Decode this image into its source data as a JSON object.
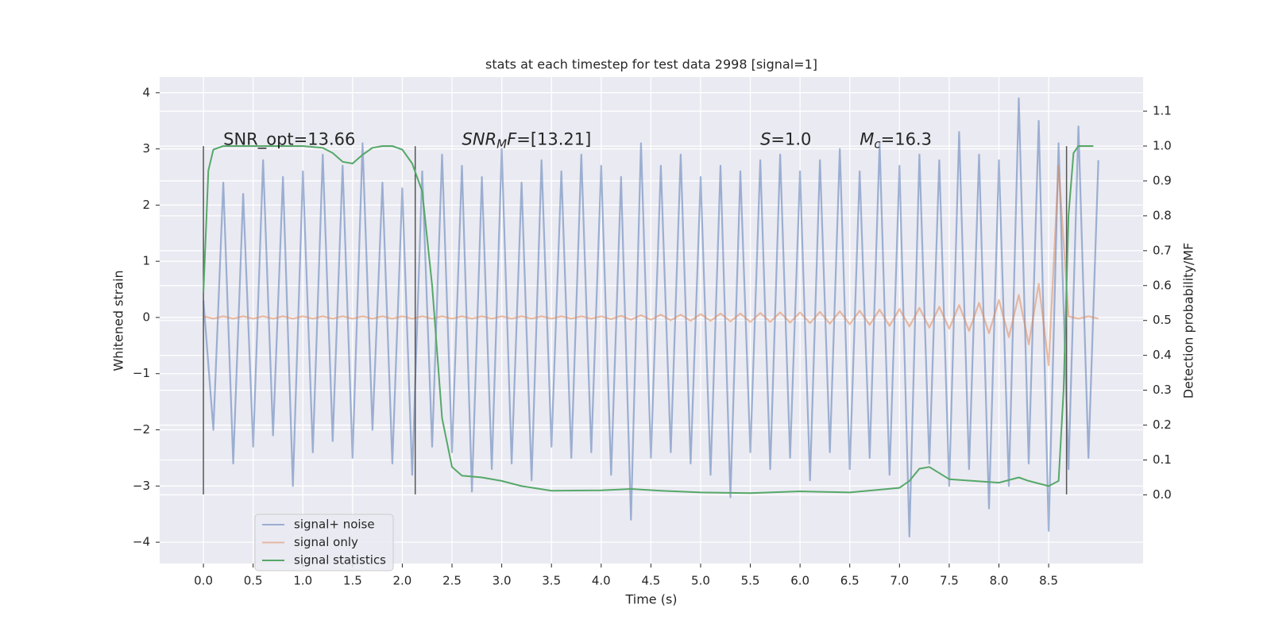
{
  "chart_data": {
    "type": "line",
    "title": "stats at each timestep for test data 2998 [signal=1]",
    "xlabel": "Time (s)",
    "ylabel": "Whitened strain",
    "y2label": "Detection probability/MF",
    "background": "#eaeaf2",
    "grid": true,
    "legend": "lower left",
    "xlim": [
      -0.44,
      9.45
    ],
    "ylim": [
      -4.38,
      4.28
    ],
    "y2lim": [
      -0.197,
      1.198
    ],
    "xticks": [
      {
        "value": 0,
        "label": "0.0"
      },
      0.5,
      {
        "value": 1,
        "label": "1.0"
      },
      1.5,
      {
        "value": 2,
        "label": "2.0"
      },
      2.5,
      {
        "value": 3,
        "label": "3.0"
      },
      3.5,
      {
        "value": 4,
        "label": "4.0"
      },
      4.5,
      {
        "value": 5,
        "label": "5.0"
      },
      5.5,
      {
        "value": 6,
        "label": "6.0"
      },
      6.5,
      {
        "value": 7,
        "label": "7.0"
      },
      7.5,
      {
        "value": 8,
        "label": "8.0"
      },
      8.5
    ],
    "yticks": [
      {
        "value": -4,
        "label": "−4"
      },
      {
        "value": -3,
        "label": "−3"
      },
      {
        "value": -2,
        "label": "−2"
      },
      {
        "value": -1,
        "label": "−1"
      },
      0,
      1,
      2,
      3,
      4
    ],
    "y2ticks": [
      {
        "value": 0,
        "label": "0.0"
      },
      0.1,
      0.2,
      0.3,
      0.4,
      0.5,
      0.6,
      0.7,
      0.8,
      0.9,
      {
        "value": 1,
        "label": "1.0"
      },
      1.1
    ],
    "x": [
      0,
      0.1,
      0.2,
      0.3,
      0.4,
      0.5,
      0.6,
      0.7,
      0.8,
      0.9,
      1,
      1.1,
      1.2,
      1.3,
      1.4,
      1.5,
      1.6,
      1.7,
      1.8,
      1.9,
      2,
      2.1,
      2.2,
      2.3,
      2.4,
      2.5,
      2.6,
      2.7,
      2.8,
      2.9,
      3,
      3.1,
      3.2,
      3.3,
      3.4,
      3.5,
      3.6,
      3.7,
      3.8,
      3.9,
      4,
      4.1,
      4.2,
      4.3,
      4.4,
      4.5,
      4.6,
      4.7,
      4.8,
      4.9,
      5,
      5.1,
      5.2,
      5.3,
      5.4,
      5.5,
      5.6,
      5.7,
      5.8,
      5.9,
      6,
      6.1,
      6.2,
      6.3,
      6.4,
      6.5,
      6.6,
      6.7,
      6.8,
      6.9,
      7,
      7.1,
      7.2,
      7.3,
      7.4,
      7.5,
      7.6,
      7.7,
      7.8,
      7.9,
      8,
      8.1,
      8.2,
      8.3,
      8.4,
      8.5,
      8.6,
      8.7,
      8.8,
      8.9,
      9
    ],
    "series": [
      {
        "name": "signal+ noise",
        "color": "#4c72b0",
        "opacity": 0.5,
        "values": [
          0.3,
          -2.0,
          2.4,
          -2.6,
          2.2,
          -2.3,
          2.8,
          -2.1,
          2.5,
          -3.0,
          2.6,
          -2.4,
          2.9,
          -2.2,
          2.7,
          -2.5,
          3.1,
          -2.0,
          2.4,
          -2.6,
          2.3,
          -2.8,
          2.6,
          -2.3,
          2.9,
          -2.4,
          2.7,
          -3.1,
          2.5,
          -2.7,
          3.0,
          -2.6,
          2.4,
          -2.9,
          2.8,
          -2.3,
          2.6,
          -2.5,
          2.9,
          -2.4,
          2.7,
          -2.8,
          2.5,
          -3.6,
          3.1,
          -2.5,
          2.7,
          -2.4,
          2.9,
          -2.6,
          2.5,
          -2.8,
          2.7,
          -3.2,
          2.6,
          -2.4,
          2.8,
          -2.7,
          2.9,
          -2.5,
          2.6,
          -2.9,
          2.8,
          -2.4,
          3.0,
          -2.7,
          2.6,
          -2.5,
          3.1,
          -2.8,
          2.7,
          -3.9,
          2.9,
          -2.6,
          2.8,
          -3.0,
          3.3,
          -2.7,
          2.9,
          -3.4,
          2.8,
          -3.0,
          3.9,
          -2.6,
          3.5,
          -3.8,
          3.1,
          -2.7,
          3.4,
          -2.5,
          2.8
        ]
      },
      {
        "name": "signal only",
        "color": "#dd8452",
        "opacity": 0.5,
        "values": [
          0.02,
          -0.02,
          0.02,
          -0.02,
          0.02,
          -0.02,
          0.02,
          -0.02,
          0.02,
          -0.02,
          0.02,
          -0.02,
          0.02,
          -0.02,
          0.02,
          -0.02,
          0.02,
          -0.02,
          0.02,
          -0.02,
          0.02,
          -0.02,
          0.02,
          -0.02,
          0.02,
          -0.02,
          0.02,
          -0.02,
          0.02,
          -0.02,
          0.02,
          -0.02,
          0.02,
          -0.02,
          0.02,
          -0.02,
          0.02,
          -0.02,
          0.02,
          -0.02,
          0.02,
          -0.03,
          0.03,
          -0.04,
          0.04,
          -0.04,
          0.05,
          -0.05,
          0.05,
          -0.06,
          0.06,
          -0.06,
          0.07,
          -0.07,
          0.07,
          -0.08,
          0.08,
          -0.08,
          0.09,
          -0.09,
          0.09,
          -0.1,
          0.1,
          -0.11,
          0.11,
          -0.12,
          0.12,
          -0.13,
          0.14,
          -0.15,
          0.15,
          -0.16,
          0.17,
          -0.18,
          0.19,
          -0.2,
          0.22,
          -0.24,
          0.26,
          -0.28,
          0.31,
          -0.35,
          0.4,
          -0.48,
          0.6,
          -0.85,
          2.7,
          0.02,
          -0.02,
          0.02,
          -0.02
        ]
      },
      {
        "name": "signal statistics",
        "color": "#55a868",
        "opacity": 1,
        "axis": "y2",
        "x": [
          0,
          0.05,
          0.1,
          0.2,
          0.5,
          1.0,
          1.2,
          1.3,
          1.4,
          1.5,
          1.6,
          1.7,
          1.8,
          1.9,
          2.0,
          2.1,
          2.2,
          2.3,
          2.4,
          2.5,
          2.6,
          2.8,
          3.0,
          3.2,
          3.5,
          4.0,
          4.3,
          4.6,
          5.0,
          5.5,
          6.0,
          6.5,
          7.0,
          7.1,
          7.2,
          7.3,
          7.5,
          8.0,
          8.2,
          8.3,
          8.5,
          8.6,
          8.65,
          8.7,
          8.75,
          8.8,
          8.95
        ],
        "values": [
          0.58,
          0.93,
          0.99,
          1.0,
          1.0,
          1.0,
          0.995,
          0.98,
          0.955,
          0.95,
          0.975,
          0.995,
          1.0,
          1.0,
          0.99,
          0.95,
          0.87,
          0.6,
          0.22,
          0.08,
          0.055,
          0.05,
          0.04,
          0.025,
          0.012,
          0.013,
          0.017,
          0.012,
          0.007,
          0.005,
          0.01,
          0.007,
          0.02,
          0.04,
          0.075,
          0.08,
          0.045,
          0.035,
          0.05,
          0.04,
          0.025,
          0.04,
          0.3,
          0.8,
          0.98,
          1.0,
          1.0
        ]
      }
    ],
    "vlines": {
      "color": "#555555",
      "x": [
        0,
        2.13,
        8.68
      ],
      "ymin": -3.15,
      "ymax": 3.05
    },
    "annotations": [
      {
        "x": 0.2,
        "y": 3.16,
        "parts": [
          {
            "text": "SNR_opt=13.66"
          }
        ]
      },
      {
        "x": 2.6,
        "y": 3.16,
        "parts": [
          {
            "text": "SNR",
            "style": "italic"
          },
          {
            "text": "M",
            "style": "sub"
          },
          {
            "text": "F",
            "style": "italic"
          },
          {
            "text": "=[13.21]"
          }
        ]
      },
      {
        "x": 5.6,
        "y": 3.16,
        "parts": [
          {
            "text": "S",
            "style": "italic"
          },
          {
            "text": "=1.0"
          }
        ]
      },
      {
        "x": 6.6,
        "y": 3.16,
        "parts": [
          {
            "text": "M",
            "style": "italic"
          },
          {
            "text": "c",
            "style": "sub"
          },
          {
            "text": "=16.3"
          }
        ]
      }
    ]
  }
}
